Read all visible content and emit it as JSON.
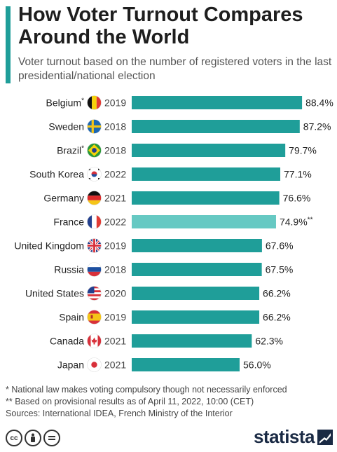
{
  "header": {
    "title": "How Voter Turnout Compares Around the World",
    "subtitle": "Voter turnout based on the number of registered voters in the last presidential/national election"
  },
  "colors": {
    "accent": "#1f9e99",
    "bar": "#1f9e99",
    "bar_highlight": "#66c9c3"
  },
  "chart_data": {
    "type": "bar",
    "orientation": "horizontal",
    "categories": [
      "Belgium",
      "Sweden",
      "Brazil",
      "South Korea",
      "Germany",
      "France",
      "United Kingdom",
      "Russia",
      "United States",
      "Spain",
      "Canada",
      "Japan"
    ],
    "category_markers": [
      "*",
      "",
      "*",
      "",
      "",
      "",
      "",
      "",
      "",
      "",
      "",
      ""
    ],
    "flag_icons": [
      "belgium-flag-icon",
      "sweden-flag-icon",
      "brazil-flag-icon",
      "south-korea-flag-icon",
      "germany-flag-icon",
      "france-flag-icon",
      "united-kingdom-flag-icon",
      "russia-flag-icon",
      "united-states-flag-icon",
      "spain-flag-icon",
      "canada-flag-icon",
      "japan-flag-icon"
    ],
    "years": [
      "2019",
      "2018",
      "2018",
      "2022",
      "2021",
      "2022",
      "2019",
      "2018",
      "2020",
      "2019",
      "2021",
      "2021"
    ],
    "values": [
      88.4,
      87.2,
      79.7,
      77.1,
      76.6,
      74.9,
      67.6,
      67.5,
      66.2,
      66.2,
      62.3,
      56.0
    ],
    "value_labels": [
      "88.4%",
      "87.2%",
      "79.7%",
      "77.1%",
      "76.6%",
      "74.9%**",
      "67.6%",
      "67.5%",
      "66.2%",
      "66.2%",
      "62.3%",
      "56.0%"
    ],
    "highlighted": [
      "France"
    ],
    "xlim": [
      0,
      100
    ],
    "grid": false,
    "legend": "none"
  },
  "footnotes": {
    "note1": "*   National law makes voting compulsory though not necessarily enforced",
    "note2": "** Based on provisional results as of April 11, 2022, 10:00 (CET)",
    "sources": "Sources: International IDEA, French Ministry of the Interior"
  },
  "brand": {
    "name": "statista"
  },
  "license_icons": [
    "cc-icon",
    "attribution-icon",
    "no-derivatives-icon"
  ]
}
